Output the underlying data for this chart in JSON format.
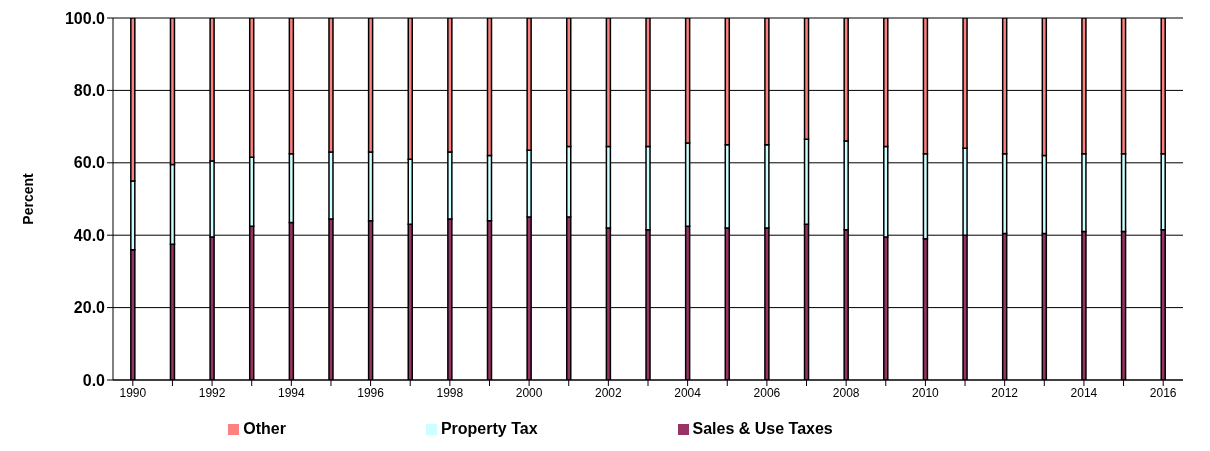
{
  "chart_data": {
    "type": "bar",
    "stacked": true,
    "ylabel": "Percent",
    "categories": [
      "1990",
      null,
      "1992",
      null,
      "1994",
      null,
      "1996",
      null,
      "1998",
      null,
      "2000",
      null,
      "2002",
      null,
      "2004",
      null,
      "2006",
      null,
      "2008",
      null,
      "2010",
      null,
      "2012",
      null,
      "2014",
      null,
      "2016"
    ],
    "series": [
      {
        "name": "Sales & Use Taxes",
        "color": "#993366",
        "values": [
          36,
          37.5,
          39.5,
          42.5,
          43.5,
          44.5,
          44,
          43,
          44.5,
          44,
          45,
          45,
          42,
          41.5,
          42.5,
          42,
          42,
          43,
          41.5,
          39.5,
          39,
          40,
          40.5,
          40.5,
          41,
          41,
          41.5
        ]
      },
      {
        "name": "Property Tax",
        "color": "#ccffff",
        "values": [
          19,
          22,
          21,
          19,
          19,
          18.5,
          19,
          18,
          18.5,
          18,
          18.5,
          19.5,
          22.5,
          23,
          23,
          23,
          23,
          23.5,
          24.5,
          25,
          23.5,
          24,
          22,
          21.5,
          21.5,
          21.5,
          21
        ]
      },
      {
        "name": "Other",
        "color": "#ff8080",
        "values": [
          45,
          40.5,
          39.5,
          38.5,
          37.5,
          37,
          37,
          39,
          37,
          38,
          36.5,
          35.5,
          35.5,
          35.5,
          34.5,
          35,
          35,
          33.5,
          34,
          35.5,
          37.5,
          36,
          37.5,
          38,
          37.5,
          37.5,
          37.5
        ]
      }
    ],
    "ylim": [
      0,
      100
    ],
    "yticks": [
      {
        "value": 0,
        "label": "0.0"
      },
      {
        "value": 20,
        "label": "20.0"
      },
      {
        "value": 40,
        "label": "40.0"
      },
      {
        "value": 60,
        "label": "60.0"
      },
      {
        "value": 80,
        "label": "80.0"
      },
      {
        "value": 100,
        "label": "100.0"
      }
    ],
    "grid": "y",
    "legend": "bottom"
  }
}
